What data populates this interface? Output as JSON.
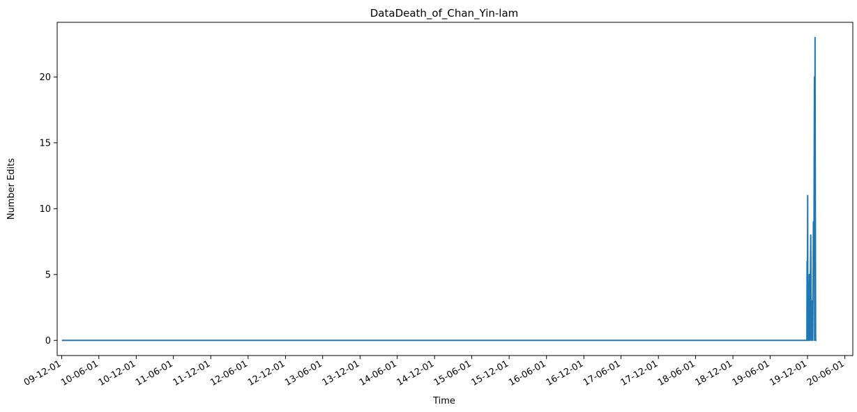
{
  "chart_data": {
    "type": "line",
    "title": "DataDeath_of_Chan_Yin-lam",
    "xlabel": "Time",
    "ylabel": "Number Edits",
    "grid": false,
    "legend": "none",
    "color": "#1f77b4",
    "xlim": [
      "2009-11-09",
      "2020-07-10"
    ],
    "ylim": [
      -1.15,
      24.15
    ],
    "x_tick_labels": [
      "09-12-01",
      "10-06-01",
      "10-12-01",
      "11-06-01",
      "11-12-01",
      "12-06-01",
      "12-12-01",
      "13-06-01",
      "13-12-01",
      "14-06-01",
      "14-12-01",
      "15-06-01",
      "15-12-01",
      "16-06-01",
      "16-12-01",
      "17-06-01",
      "17-12-01",
      "18-06-01",
      "18-12-01",
      "19-06-01",
      "19-12-01",
      "20-06-01"
    ],
    "x_tick_dates": [
      "2009-12-01",
      "2010-06-01",
      "2010-12-01",
      "2011-06-01",
      "2011-12-01",
      "2012-06-01",
      "2012-12-01",
      "2013-06-01",
      "2013-12-01",
      "2014-06-01",
      "2014-12-01",
      "2015-06-01",
      "2015-12-01",
      "2016-06-01",
      "2016-12-01",
      "2017-06-01",
      "2017-12-01",
      "2018-06-01",
      "2018-12-01",
      "2019-06-01",
      "2019-12-01",
      "2020-06-01"
    ],
    "y_ticks": [
      0,
      5,
      10,
      15,
      20
    ],
    "series": [
      {
        "x": [
          "2009-12-02",
          "2019-11-28",
          "2019-11-29",
          "2019-11-30",
          "2019-12-02",
          "2019-12-03",
          "2019-12-05",
          "2019-12-07",
          "2019-12-10",
          "2019-12-13",
          "2019-12-17",
          "2019-12-20",
          "2019-12-24",
          "2019-12-27",
          "2019-12-30",
          "2020-01-02",
          "2020-01-04",
          "2020-01-05",
          "2020-01-07",
          "2020-01-10",
          "2020-01-14"
        ],
        "y": [
          0,
          0,
          6,
          0,
          11,
          0,
          3,
          0,
          5,
          0,
          8,
          0,
          3,
          0,
          9,
          9,
          20,
          0,
          23,
          0,
          0
        ]
      }
    ]
  }
}
